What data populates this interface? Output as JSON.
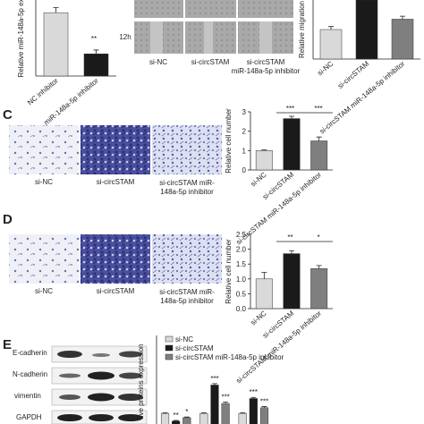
{
  "panels": {
    "letters": [
      "C",
      "D",
      "E"
    ],
    "time_label": "12h",
    "image_labels_c": [
      "si-NC",
      "si-circSTAM",
      "si-circSTAM miR-148a-5p inhibitor"
    ],
    "image_labels_d": [
      "si-NC",
      "si-circSTAM",
      "si-circSTAM miR-148a-5p inhibitor"
    ],
    "blot_labels": [
      "E-cadherin",
      "N-cadherin",
      "vimentin",
      "GAPDH"
    ]
  },
  "chart_data": [
    {
      "type": "bar",
      "y_label": "Relative miR-148a-5p ex",
      "categories": [
        "NC inhibitor",
        "miR-148a-5p inhibitor"
      ],
      "values": [
        1.0,
        0.35
      ],
      "errors": [
        0.08,
        0.06
      ],
      "colors": [
        "#d9d9d9",
        "#1a1a1a"
      ],
      "ylim": [
        0,
        1.2
      ],
      "annotations": [
        "**"
      ]
    },
    {
      "type": "bar",
      "y_label": "Relative migration",
      "categories": [
        "si-NC",
        "si-circSTAM",
        "si-circSTAM miR-148a-5p inhibitor"
      ],
      "values": [
        1.0,
        2.0,
        1.35
      ],
      "errors": [
        0.1,
        0.12,
        0.1
      ],
      "colors": [
        "#d9d9d9",
        "#1a1a1a",
        "#7f7f7f"
      ],
      "ylim": [
        0,
        2
      ]
    },
    {
      "type": "bar",
      "y_label": "Relative cell number",
      "categories": [
        "si-NC",
        "si-circSTAM",
        "si-circSTAM miR-148a-5p inhibitor"
      ],
      "values": [
        1.0,
        2.65,
        1.5
      ],
      "errors": [
        0.03,
        0.12,
        0.2
      ],
      "colors": [
        "#d9d9d9",
        "#1a1a1a",
        "#7f7f7f"
      ],
      "ylim": [
        0,
        3
      ],
      "yticks": [
        0,
        1,
        2,
        3
      ],
      "annotations": [
        "***",
        "***"
      ]
    },
    {
      "type": "bar",
      "y_label": "Relative cell number",
      "categories": [
        "si-NC",
        "si-circSTAM",
        "si-circSTAM miR-148a-5p inhibitor"
      ],
      "values": [
        1.0,
        1.85,
        1.35
      ],
      "errors": [
        0.22,
        0.1,
        0.1
      ],
      "colors": [
        "#d9d9d9",
        "#1a1a1a",
        "#7f7f7f"
      ],
      "ylim": [
        0,
        2.5
      ],
      "yticks": [
        {
          "value": 0,
          "label": "0.0"
        },
        {
          "value": 0.5,
          "label": "0.5"
        },
        {
          "value": 1,
          "label": "1.0"
        },
        {
          "value": 1.5,
          "label": "1.5"
        },
        {
          "value": 2,
          "label": "2.0"
        },
        {
          "value": 2.5,
          "label": "2.5"
        }
      ],
      "annotations": [
        "**",
        "*"
      ]
    },
    {
      "type": "grouped_bar",
      "y_label": "tive proteins expression",
      "ylim": [
        0,
        6.5
      ],
      "series": [
        {
          "name": "si-NC",
          "color": "#d9d9d9",
          "values": [
            1.0,
            1.0,
            1.0
          ],
          "errors": [
            0.05,
            0.05,
            0.05
          ]
        },
        {
          "name": "si-circSTAM",
          "color": "#1a1a1a",
          "values": [
            0.45,
            3.0,
            2.05
          ],
          "errors": [
            0.05,
            0.1,
            0.08
          ]
        },
        {
          "name": "si-circSTAM miR-148a-5p inhibitor",
          "color": "#7f7f7f",
          "values": [
            0.7,
            1.7,
            1.4
          ],
          "errors": [
            0.05,
            0.1,
            0.08
          ]
        }
      ],
      "annotations": [
        "**",
        "*",
        "***",
        "***",
        "***",
        "***"
      ]
    }
  ]
}
